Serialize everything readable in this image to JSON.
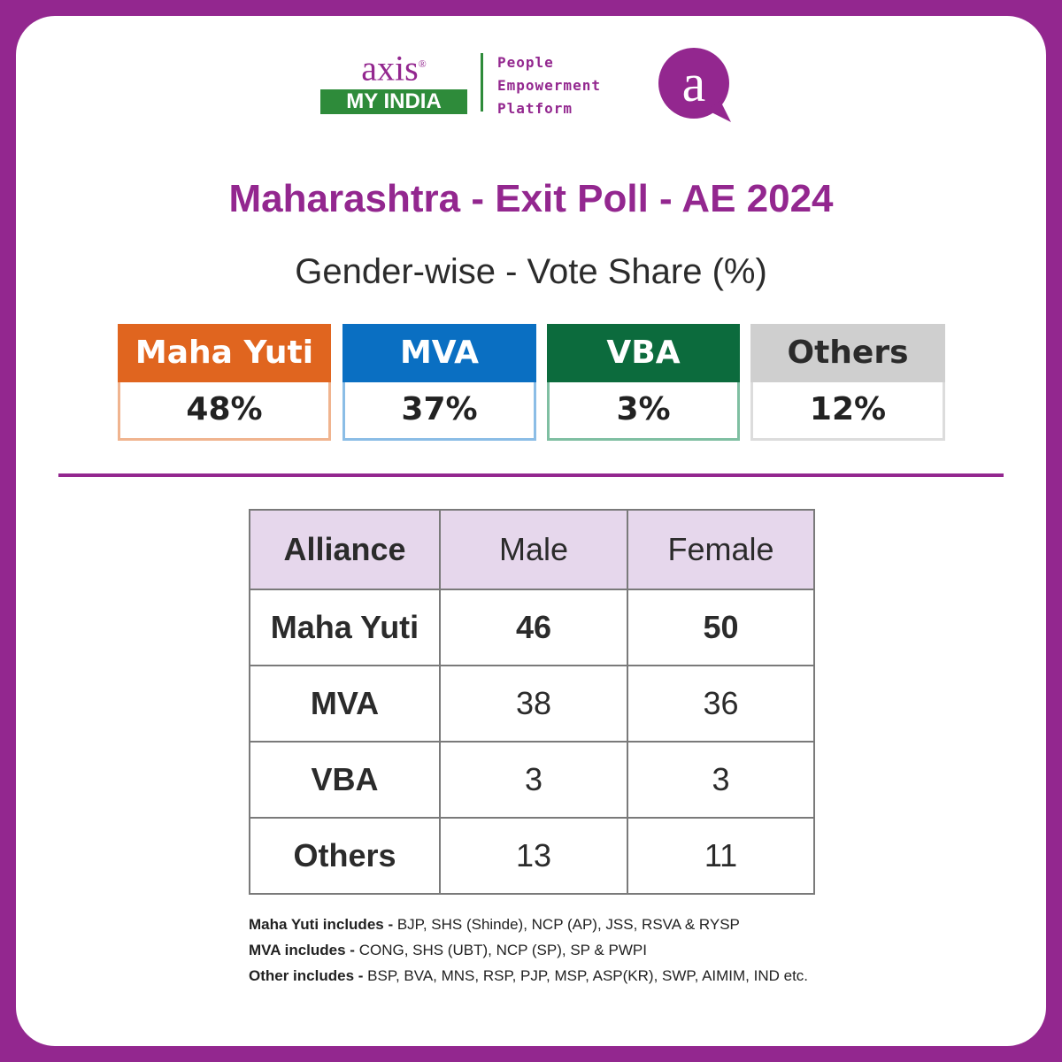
{
  "logo": {
    "brand": "axis",
    "registered": "®",
    "sub": "MY INDIA",
    "tagline": [
      "People",
      "Empowerment",
      "Platform"
    ],
    "icon": "a"
  },
  "header": {
    "title": "Maharashtra - Exit Poll - AE 2024",
    "subtitle": "Gender-wise - Vote Share (%)"
  },
  "summary": [
    {
      "name": "Maha Yuti",
      "value": "48%"
    },
    {
      "name": "MVA",
      "value": "37%"
    },
    {
      "name": "VBA",
      "value": "3%"
    },
    {
      "name": "Others",
      "value": "12%"
    }
  ],
  "table": {
    "header": [
      "Alliance",
      "Male",
      "Female"
    ],
    "rows": [
      [
        "Maha Yuti",
        46,
        50
      ],
      [
        "MVA",
        38,
        36
      ],
      [
        "VBA",
        3,
        3
      ],
      [
        "Others",
        13,
        11
      ]
    ]
  },
  "notes": [
    {
      "label": "Maha Yuti includes - ",
      "text": "BJP, SHS (Shinde), NCP (AP), JSS, RSVA & RYSP"
    },
    {
      "label": "MVA includes - ",
      "text": "CONG, SHS (UBT), NCP (SP), SP & PWPI"
    },
    {
      "label": "Other includes - ",
      "text": "BSP, BVA, MNS, RSP, PJP, MSP, ASP(KR), SWP, AIMIM, IND etc."
    }
  ]
}
